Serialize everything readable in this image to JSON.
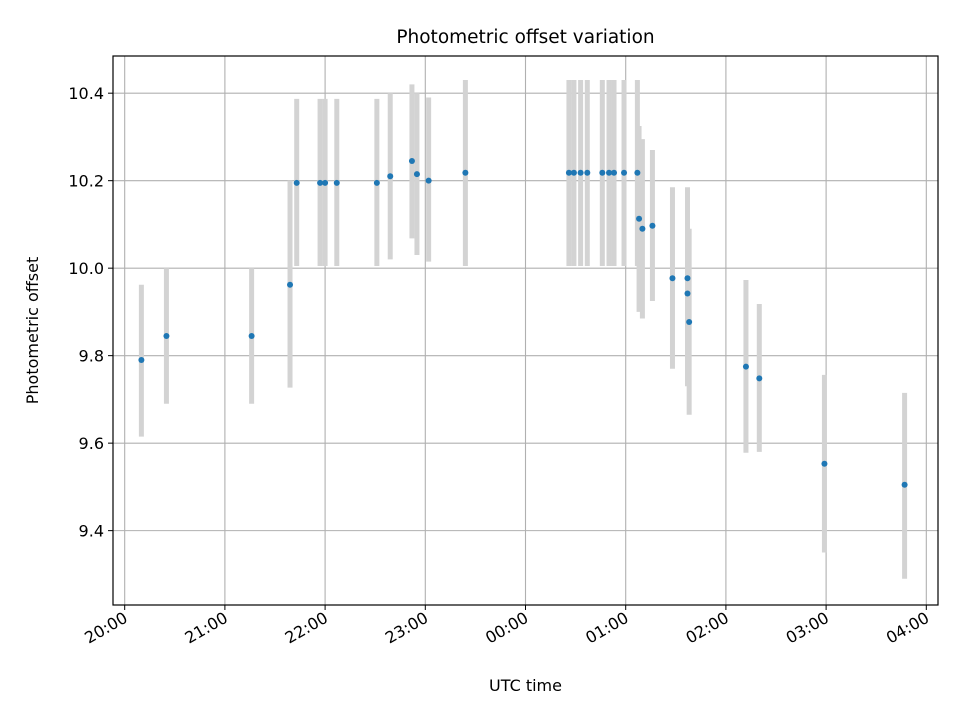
{
  "chart_data": {
    "type": "scatter",
    "title": "Photometric offset variation",
    "xlabel": "UTC time",
    "ylabel": "Photometric offset",
    "xlim": [
      "19:53",
      "04:07"
    ],
    "ylim": [
      9.23,
      10.485
    ],
    "grid": true,
    "x_ticks": [
      "20:00",
      "21:00",
      "22:00",
      "23:00",
      "00:00",
      "01:00",
      "02:00",
      "03:00",
      "04:00"
    ],
    "y_ticks": [
      9.4,
      9.6,
      9.8,
      10.0,
      10.2,
      10.4
    ],
    "y_tick_labels": [
      "9.4",
      "9.6",
      "9.8",
      "10.0",
      "10.2",
      "10.4"
    ],
    "point_color": "#1f77b4",
    "error_color": "#d3d3d3",
    "points": [
      {
        "x": "20:10",
        "y": 9.79,
        "low": 9.615,
        "high": 9.962
      },
      {
        "x": "20:25",
        "y": 9.845,
        "low": 9.69,
        "high": 10.0
      },
      {
        "x": "21:16",
        "y": 9.845,
        "low": 9.69,
        "high": 10.0
      },
      {
        "x": "21:39",
        "y": 9.962,
        "low": 9.727,
        "high": 10.2
      },
      {
        "x": "21:43",
        "y": 10.195,
        "low": 10.005,
        "high": 10.387
      },
      {
        "x": "21:57",
        "y": 10.195,
        "low": 10.005,
        "high": 10.387
      },
      {
        "x": "22:00",
        "y": 10.195,
        "low": 10.005,
        "high": 10.387
      },
      {
        "x": "22:07",
        "y": 10.195,
        "low": 10.005,
        "high": 10.387
      },
      {
        "x": "22:31",
        "y": 10.195,
        "low": 10.005,
        "high": 10.387
      },
      {
        "x": "22:39",
        "y": 10.21,
        "low": 10.02,
        "high": 10.4
      },
      {
        "x": "22:52",
        "y": 10.245,
        "low": 10.068,
        "high": 10.42
      },
      {
        "x": "22:55",
        "y": 10.215,
        "low": 10.03,
        "high": 10.4
      },
      {
        "x": "23:02",
        "y": 10.2,
        "low": 10.015,
        "high": 10.39
      },
      {
        "x": "23:24",
        "y": 10.218,
        "low": 10.005,
        "high": 10.43
      },
      {
        "x": "00:26",
        "y": 10.218,
        "low": 10.005,
        "high": 10.43
      },
      {
        "x": "00:29",
        "y": 10.218,
        "low": 10.005,
        "high": 10.43
      },
      {
        "x": "00:33",
        "y": 10.218,
        "low": 10.005,
        "high": 10.43
      },
      {
        "x": "00:37",
        "y": 10.218,
        "low": 10.005,
        "high": 10.43
      },
      {
        "x": "00:46",
        "y": 10.218,
        "low": 10.005,
        "high": 10.43
      },
      {
        "x": "00:50",
        "y": 10.218,
        "low": 10.005,
        "high": 10.43
      },
      {
        "x": "00:53",
        "y": 10.218,
        "low": 10.005,
        "high": 10.43
      },
      {
        "x": "00:59",
        "y": 10.218,
        "low": 10.005,
        "high": 10.43
      },
      {
        "x": "01:07",
        "y": 10.218,
        "low": 10.005,
        "high": 10.43
      },
      {
        "x": "01:08",
        "y": 10.113,
        "low": 9.9,
        "high": 10.325
      },
      {
        "x": "01:10",
        "y": 10.09,
        "low": 9.885,
        "high": 10.295
      },
      {
        "x": "01:16",
        "y": 10.097,
        "low": 9.925,
        "high": 10.27
      },
      {
        "x": "01:28",
        "y": 9.977,
        "low": 9.77,
        "high": 10.185
      },
      {
        "x": "01:37",
        "y": 9.977,
        "low": 9.77,
        "high": 10.185
      },
      {
        "x": "01:37",
        "y": 9.942,
        "low": 9.73,
        "high": 10.155
      },
      {
        "x": "01:38",
        "y": 9.877,
        "low": 9.665,
        "high": 10.09
      },
      {
        "x": "02:12",
        "y": 9.775,
        "low": 9.578,
        "high": 9.973
      },
      {
        "x": "02:20",
        "y": 9.748,
        "low": 9.58,
        "high": 9.918
      },
      {
        "x": "02:59",
        "y": 9.553,
        "low": 9.35,
        "high": 9.756
      },
      {
        "x": "03:47",
        "y": 9.505,
        "low": 9.29,
        "high": 9.715
      }
    ]
  }
}
